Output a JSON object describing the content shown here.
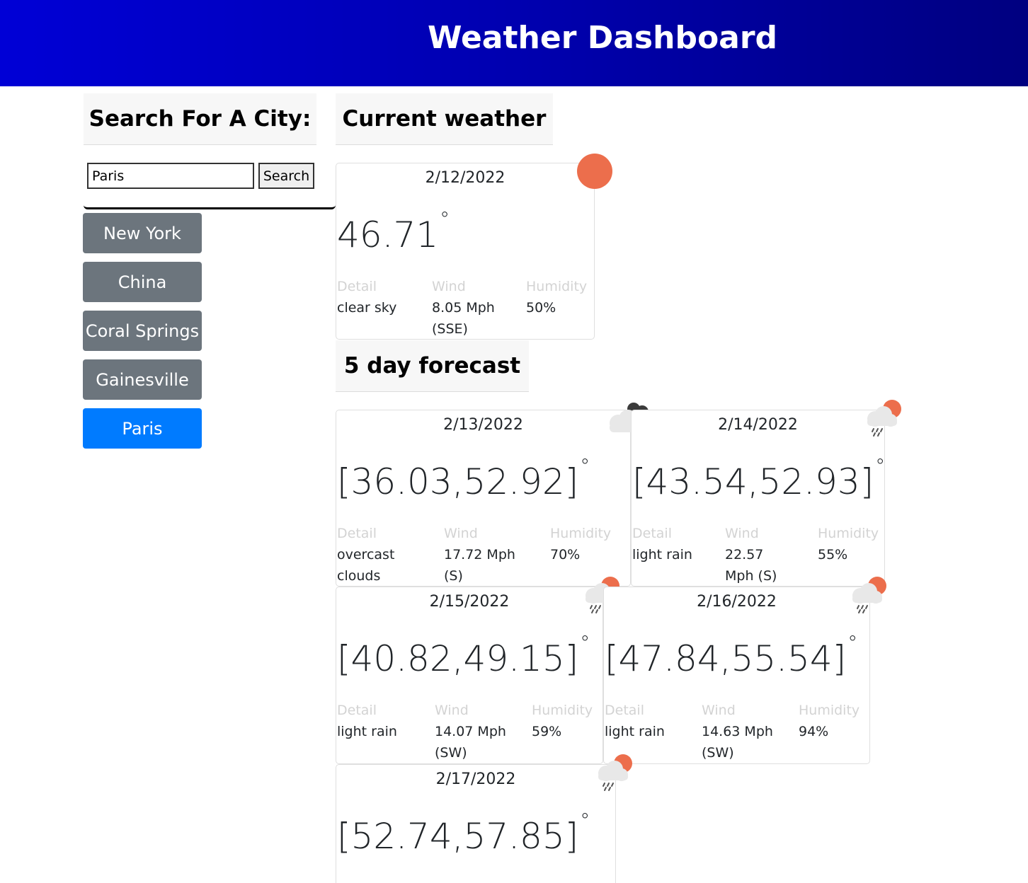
{
  "header": {
    "title": "Weather Dashboard"
  },
  "search": {
    "title": "Search For A City:",
    "input_value": "Paris",
    "button_label": "Search"
  },
  "cities": [
    "New York",
    "China",
    "Coral Springs",
    "Gainesville",
    "Paris"
  ],
  "active_city": "Paris",
  "current": {
    "title": "Current weather",
    "date": "2/12/2022",
    "temp": "46.71",
    "degree": "°",
    "labels": {
      "detail": "Detail",
      "wind": "Wind",
      "humidity": "Humidity"
    },
    "detail": "clear sky",
    "wind_line1": "8.05 Mph",
    "wind_line2": "(SSE)",
    "humidity": "50%",
    "icon": "clear-sky-sun-icon"
  },
  "forecast": {
    "title": "5 day forecast",
    "labels": {
      "detail": "Detail",
      "wind": "Wind",
      "humidity": "Humidity"
    },
    "days": [
      {
        "date": "2/13/2022",
        "temp": "[36.03,52.92]",
        "detail_line1": "overcast",
        "detail_line2": "clouds",
        "wind_line1": "17.72 Mph",
        "wind_line2": "(S)",
        "humidity": "70%",
        "icon": "overcast-clouds-icon"
      },
      {
        "date": "2/14/2022",
        "temp": "[43.54,52.93]",
        "detail_line1": "light rain",
        "detail_line2": "",
        "wind_line1": "22.57",
        "wind_line2": "Mph (S)",
        "humidity": "55%",
        "icon": "light-rain-icon"
      },
      {
        "date": "2/15/2022",
        "temp": "[40.82,49.15]",
        "detail_line1": "light rain",
        "detail_line2": "",
        "wind_line1": "14.07 Mph",
        "wind_line2": "(SW)",
        "humidity": "59%",
        "icon": "light-rain-icon"
      },
      {
        "date": "2/16/2022",
        "temp": "[47.84,55.54]",
        "detail_line1": "light rain",
        "detail_line2": "",
        "wind_line1": "14.63 Mph",
        "wind_line2": "(SW)",
        "humidity": "94%",
        "icon": "light-rain-icon"
      },
      {
        "date": "2/17/2022",
        "temp": "[52.74,57.85]",
        "icon": "light-rain-icon"
      }
    ]
  },
  "colors": {
    "header_start": "#0000d6",
    "header_end": "#000080",
    "city_button": "#6c757d",
    "city_button_active": "#007bff",
    "sun": "#ec6e4c"
  }
}
